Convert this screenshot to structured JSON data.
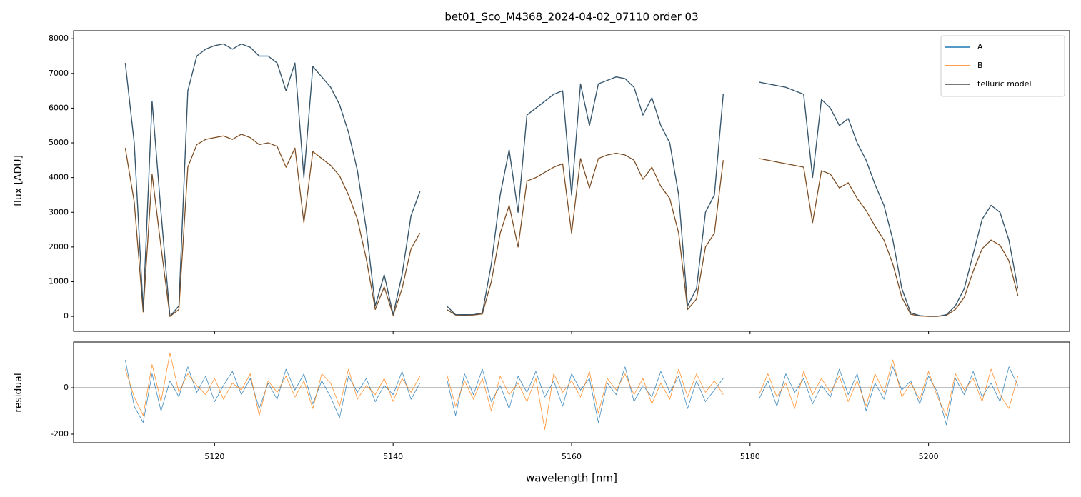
{
  "chart_data": [
    {
      "type": "line",
      "title": "bet01_Sco_M4368_2024-04-02_07110  order 03",
      "ylabel": "flux [ADU]",
      "xlim": [
        5104.2,
        5215.8
      ],
      "xticks": [
        5120,
        5140,
        5160,
        5180,
        5200
      ],
      "ylim": [
        -430,
        8230
      ],
      "yticks": [
        0,
        1000,
        2000,
        3000,
        4000,
        5000,
        6000,
        7000,
        8000
      ],
      "legend": "upper right",
      "x": [
        5110,
        5111,
        5112,
        5113,
        5114,
        5115,
        5116,
        5117,
        5118,
        5119,
        5120,
        5121,
        5122,
        5123,
        5124,
        5125,
        5126,
        5127,
        5128,
        5129,
        5130,
        5131,
        5132,
        5133,
        5134,
        5135,
        5136,
        5137,
        5138,
        5139,
        5140,
        5141,
        5142,
        5143,
        5144,
        5145,
        5146,
        5147,
        5148,
        5149,
        5150,
        5151,
        5152,
        5153,
        5154,
        5155,
        5156,
        5157,
        5158,
        5159,
        5160,
        5161,
        5162,
        5163,
        5164,
        5165,
        5166,
        5167,
        5168,
        5169,
        5170,
        5171,
        5172,
        5173,
        5174,
        5175,
        5176,
        5177,
        5178,
        5179,
        5180,
        5181,
        5182,
        5183,
        5184,
        5185,
        5186,
        5187,
        5188,
        5189,
        5190,
        5191,
        5192,
        5193,
        5194,
        5195,
        5196,
        5197,
        5198,
        5199,
        5200,
        5201,
        5202,
        5203,
        5204,
        5205,
        5206,
        5207,
        5208,
        5209,
        5210
      ],
      "series": [
        {
          "name": "A",
          "color": "#1f77b4",
          "values": [
            7300,
            5000,
            200,
            6200,
            3000,
            0,
            300,
            6500,
            7500,
            7700,
            7800,
            7850,
            7700,
            7850,
            7750,
            7500,
            7500,
            7300,
            6500,
            7300,
            4000,
            7200,
            6900,
            6600,
            6100,
            5300,
            4200,
            2500,
            300,
            1200,
            50,
            1200,
            2900,
            3600,
            null,
            null,
            300,
            50,
            50,
            50,
            100,
            1500,
            3500,
            4800,
            3000,
            5800,
            6000,
            6200,
            6400,
            6500,
            3500,
            6700,
            5500,
            6700,
            6800,
            6900,
            6850,
            6600,
            5800,
            6300,
            5500,
            5000,
            3500,
            300,
            800,
            3000,
            3500,
            6400,
            null,
            null,
            null,
            6750,
            6700,
            6650,
            6600,
            6500,
            6400,
            4000,
            6250,
            6000,
            5500,
            5700,
            5000,
            4500,
            3800,
            3200,
            2200,
            800,
            100,
            20,
            0,
            0,
            50,
            300,
            800,
            1800,
            2800,
            3200,
            3000,
            2200,
            800
          ]
        },
        {
          "name": "B",
          "color": "#ff7f0e",
          "values": [
            4850,
            3300,
            130,
            4100,
            2000,
            0,
            200,
            4300,
            4950,
            5100,
            5150,
            5200,
            5100,
            5250,
            5150,
            4950,
            5000,
            4900,
            4300,
            4850,
            2700,
            4750,
            4550,
            4350,
            4050,
            3500,
            2800,
            1650,
            200,
            850,
            30,
            800,
            1950,
            2400,
            null,
            null,
            200,
            40,
            30,
            40,
            70,
            1000,
            2400,
            3200,
            2000,
            3900,
            4000,
            4150,
            4300,
            4400,
            2400,
            4550,
            3700,
            4550,
            4650,
            4700,
            4650,
            4500,
            3950,
            4300,
            3750,
            3400,
            2400,
            200,
            500,
            2000,
            2400,
            4500,
            null,
            null,
            null,
            4550,
            4500,
            4450,
            4400,
            4350,
            4300,
            2700,
            4200,
            4100,
            3700,
            3850,
            3400,
            3050,
            2600,
            2200,
            1500,
            550,
            60,
            10,
            0,
            0,
            30,
            200,
            550,
            1300,
            1950,
            2200,
            2050,
            1600,
            600
          ]
        },
        {
          "name": "telluric model",
          "color": "#4d4d4d",
          "x": [
            5110,
            5111,
            5112,
            5113,
            5114,
            5115,
            5116,
            5117,
            5118,
            5119,
            5120,
            5121,
            5122,
            5123,
            5124,
            5125,
            5126,
            5127,
            5128,
            5129,
            5130,
            5131,
            5132,
            5133,
            5134,
            5135,
            5136,
            5137,
            5138,
            5139,
            5140,
            5141,
            5142,
            5143,
            5144,
            5145,
            5146,
            5147,
            5148,
            5149,
            5150,
            5151,
            5152,
            5153,
            5154,
            5155,
            5156,
            5157,
            5158,
            5159,
            5160,
            5161,
            5162,
            5163,
            5164,
            5165,
            5166,
            5167,
            5168,
            5169,
            5170,
            5171,
            5172,
            5173,
            5174,
            5175,
            5176,
            5177,
            5178,
            5179,
            5180,
            5181,
            5182,
            5183,
            5184,
            5185,
            5186,
            5187,
            5188,
            5189,
            5190,
            5191,
            5192,
            5193,
            5194,
            5195,
            5196,
            5197,
            5198,
            5199,
            5200,
            5201,
            5202,
            5203,
            5204,
            5205,
            5206,
            5207,
            5208,
            5209,
            5210,
            5210,
            5110,
            5111,
            5112,
            5113,
            5114,
            5115,
            5116,
            5117,
            5118,
            5119,
            5120,
            5121,
            5122,
            5123,
            5124,
            5125,
            5126,
            5127,
            5128,
            5129,
            5130,
            5131,
            5132,
            5133,
            5134,
            5135,
            5136,
            5137,
            5138,
            5139,
            5140,
            5141,
            5142,
            5143,
            5144,
            5145,
            5146,
            5147,
            5148,
            5149,
            5150,
            5151,
            5152,
            5153,
            5154,
            5155,
            5156,
            5157,
            5158,
            5159,
            5160,
            5161,
            5162,
            5163,
            5164,
            5165,
            5166,
            5167,
            5168,
            5169,
            5170,
            5171,
            5172,
            5173,
            5174,
            5175,
            5176,
            5177,
            5178,
            5179,
            5180,
            5181,
            5182,
            5183,
            5184,
            5185,
            5186,
            5187,
            5188,
            5189,
            5190,
            5191,
            5192,
            5193,
            5194,
            5195,
            5196,
            5197,
            5198,
            5199,
            5200,
            5201,
            5202,
            5203,
            5204,
            5205,
            5206,
            5207,
            5208,
            5209,
            5210
          ],
          "values": [
            7300,
            5000,
            200,
            6200,
            3000,
            0,
            300,
            6500,
            7500,
            7700,
            7800,
            7850,
            7700,
            7850,
            7750,
            7500,
            7500,
            7300,
            6500,
            7300,
            4000,
            7200,
            6900,
            6600,
            6100,
            5300,
            4200,
            2500,
            300,
            1200,
            50,
            1200,
            2900,
            3600,
            null,
            null,
            300,
            50,
            50,
            50,
            100,
            1500,
            3500,
            4800,
            3000,
            5800,
            6000,
            6200,
            6400,
            6500,
            3500,
            6700,
            5500,
            6700,
            6800,
            6900,
            6850,
            6600,
            5800,
            6300,
            5500,
            5000,
            3500,
            300,
            800,
            3000,
            3500,
            6400,
            null,
            null,
            null,
            6750,
            6700,
            6650,
            6600,
            6500,
            6400,
            4000,
            6250,
            6000,
            5500,
            5700,
            5000,
            4500,
            3800,
            3200,
            2200,
            800,
            100,
            20,
            0,
            0,
            50,
            300,
            800,
            1800,
            2800,
            3200,
            3000,
            2200,
            800,
            null,
            4850,
            3300,
            130,
            4100,
            2000,
            0,
            200,
            4300,
            4950,
            5100,
            5150,
            5200,
            5100,
            5250,
            5150,
            4950,
            5000,
            4900,
            4300,
            4850,
            2700,
            4750,
            4550,
            4350,
            4050,
            3500,
            2800,
            1650,
            200,
            850,
            30,
            800,
            1950,
            2400,
            null,
            null,
            200,
            40,
            30,
            40,
            70,
            1000,
            2400,
            3200,
            2000,
            3900,
            4000,
            4150,
            4300,
            4400,
            2400,
            4550,
            3700,
            4550,
            4650,
            4700,
            4650,
            4500,
            3950,
            4300,
            3750,
            3400,
            2400,
            200,
            500,
            2000,
            2400,
            4500,
            null,
            null,
            null,
            4550,
            4500,
            4450,
            4400,
            4350,
            4300,
            2700,
            4200,
            4100,
            3700,
            3850,
            3400,
            3050,
            2600,
            2200,
            1500,
            550,
            60,
            10,
            0,
            0,
            30,
            200,
            550,
            1300,
            1950,
            2200,
            2050,
            1600,
            600
          ]
        }
      ]
    },
    {
      "type": "line",
      "ylabel": "residual",
      "xlabel": "wavelength [nm]",
      "xlim": [
        5104.2,
        5215.8
      ],
      "xticks": [
        5120,
        5140,
        5160,
        5180,
        5200
      ],
      "ylim": [
        -237,
        197
      ],
      "yticks": [
        -200,
        0
      ],
      "x": [
        5110,
        5111,
        5112,
        5113,
        5114,
        5115,
        5116,
        5117,
        5118,
        5119,
        5120,
        5121,
        5122,
        5123,
        5124,
        5125,
        5126,
        5127,
        5128,
        5129,
        5130,
        5131,
        5132,
        5133,
        5134,
        5135,
        5136,
        5137,
        5138,
        5139,
        5140,
        5141,
        5142,
        5143,
        5144,
        5145,
        5146,
        5147,
        5148,
        5149,
        5150,
        5151,
        5152,
        5153,
        5154,
        5155,
        5156,
        5157,
        5158,
        5159,
        5160,
        5161,
        5162,
        5163,
        5164,
        5165,
        5166,
        5167,
        5168,
        5169,
        5170,
        5171,
        5172,
        5173,
        5174,
        5175,
        5176,
        5177,
        5178,
        5179,
        5180,
        5181,
        5182,
        5183,
        5184,
        5185,
        5186,
        5187,
        5188,
        5189,
        5190,
        5191,
        5192,
        5193,
        5194,
        5195,
        5196,
        5197,
        5198,
        5199,
        5200,
        5201,
        5202,
        5203,
        5204,
        5205,
        5206,
        5207,
        5208,
        5209,
        5210
      ],
      "series": [
        {
          "name": "A",
          "color": "#1f77b4",
          "values": [
            120,
            -80,
            -150,
            60,
            -100,
            30,
            -40,
            90,
            -20,
            50,
            -60,
            10,
            70,
            -30,
            40,
            -90,
            20,
            -50,
            80,
            -10,
            60,
            -70,
            30,
            -40,
            -130,
            50,
            -20,
            40,
            -60,
            10,
            -30,
            70,
            -50,
            20,
            null,
            null,
            40,
            -120,
            60,
            -30,
            80,
            -60,
            10,
            -90,
            50,
            -20,
            70,
            -40,
            30,
            -80,
            60,
            -10,
            40,
            -150,
            20,
            -30,
            90,
            -60,
            10,
            -40,
            70,
            -20,
            50,
            -90,
            30,
            -60,
            -10,
            40,
            null,
            null,
            null,
            -50,
            30,
            -80,
            60,
            -20,
            40,
            -70,
            10,
            -40,
            80,
            -30,
            60,
            -100,
            20,
            -50,
            90,
            -10,
            30,
            -70,
            50,
            -20,
            -160,
            40,
            -30,
            70,
            -40,
            20,
            -60,
            90,
            10
          ]
        },
        {
          "name": "B",
          "color": "#ff7f0e",
          "values": [
            80,
            -40,
            -120,
            100,
            -60,
            150,
            -20,
            60,
            10,
            -30,
            40,
            -50,
            20,
            -10,
            60,
            -120,
            30,
            -20,
            50,
            -40,
            30,
            -90,
            60,
            20,
            -80,
            80,
            -50,
            10,
            -30,
            40,
            -60,
            40,
            -20,
            50,
            null,
            null,
            60,
            -80,
            30,
            -50,
            40,
            -100,
            50,
            -30,
            20,
            -60,
            40,
            -180,
            60,
            -20,
            30,
            -40,
            70,
            -110,
            40,
            -10,
            60,
            -30,
            40,
            -70,
            20,
            -50,
            80,
            -40,
            60,
            -20,
            30,
            -30,
            null,
            null,
            null,
            -30,
            60,
            -40,
            20,
            -90,
            70,
            -30,
            40,
            -20,
            50,
            -60,
            30,
            -80,
            60,
            -20,
            120,
            -40,
            20,
            -50,
            70,
            -40,
            -120,
            60,
            -10,
            40,
            -60,
            80,
            -30,
            -90,
            50
          ]
        }
      ]
    }
  ]
}
